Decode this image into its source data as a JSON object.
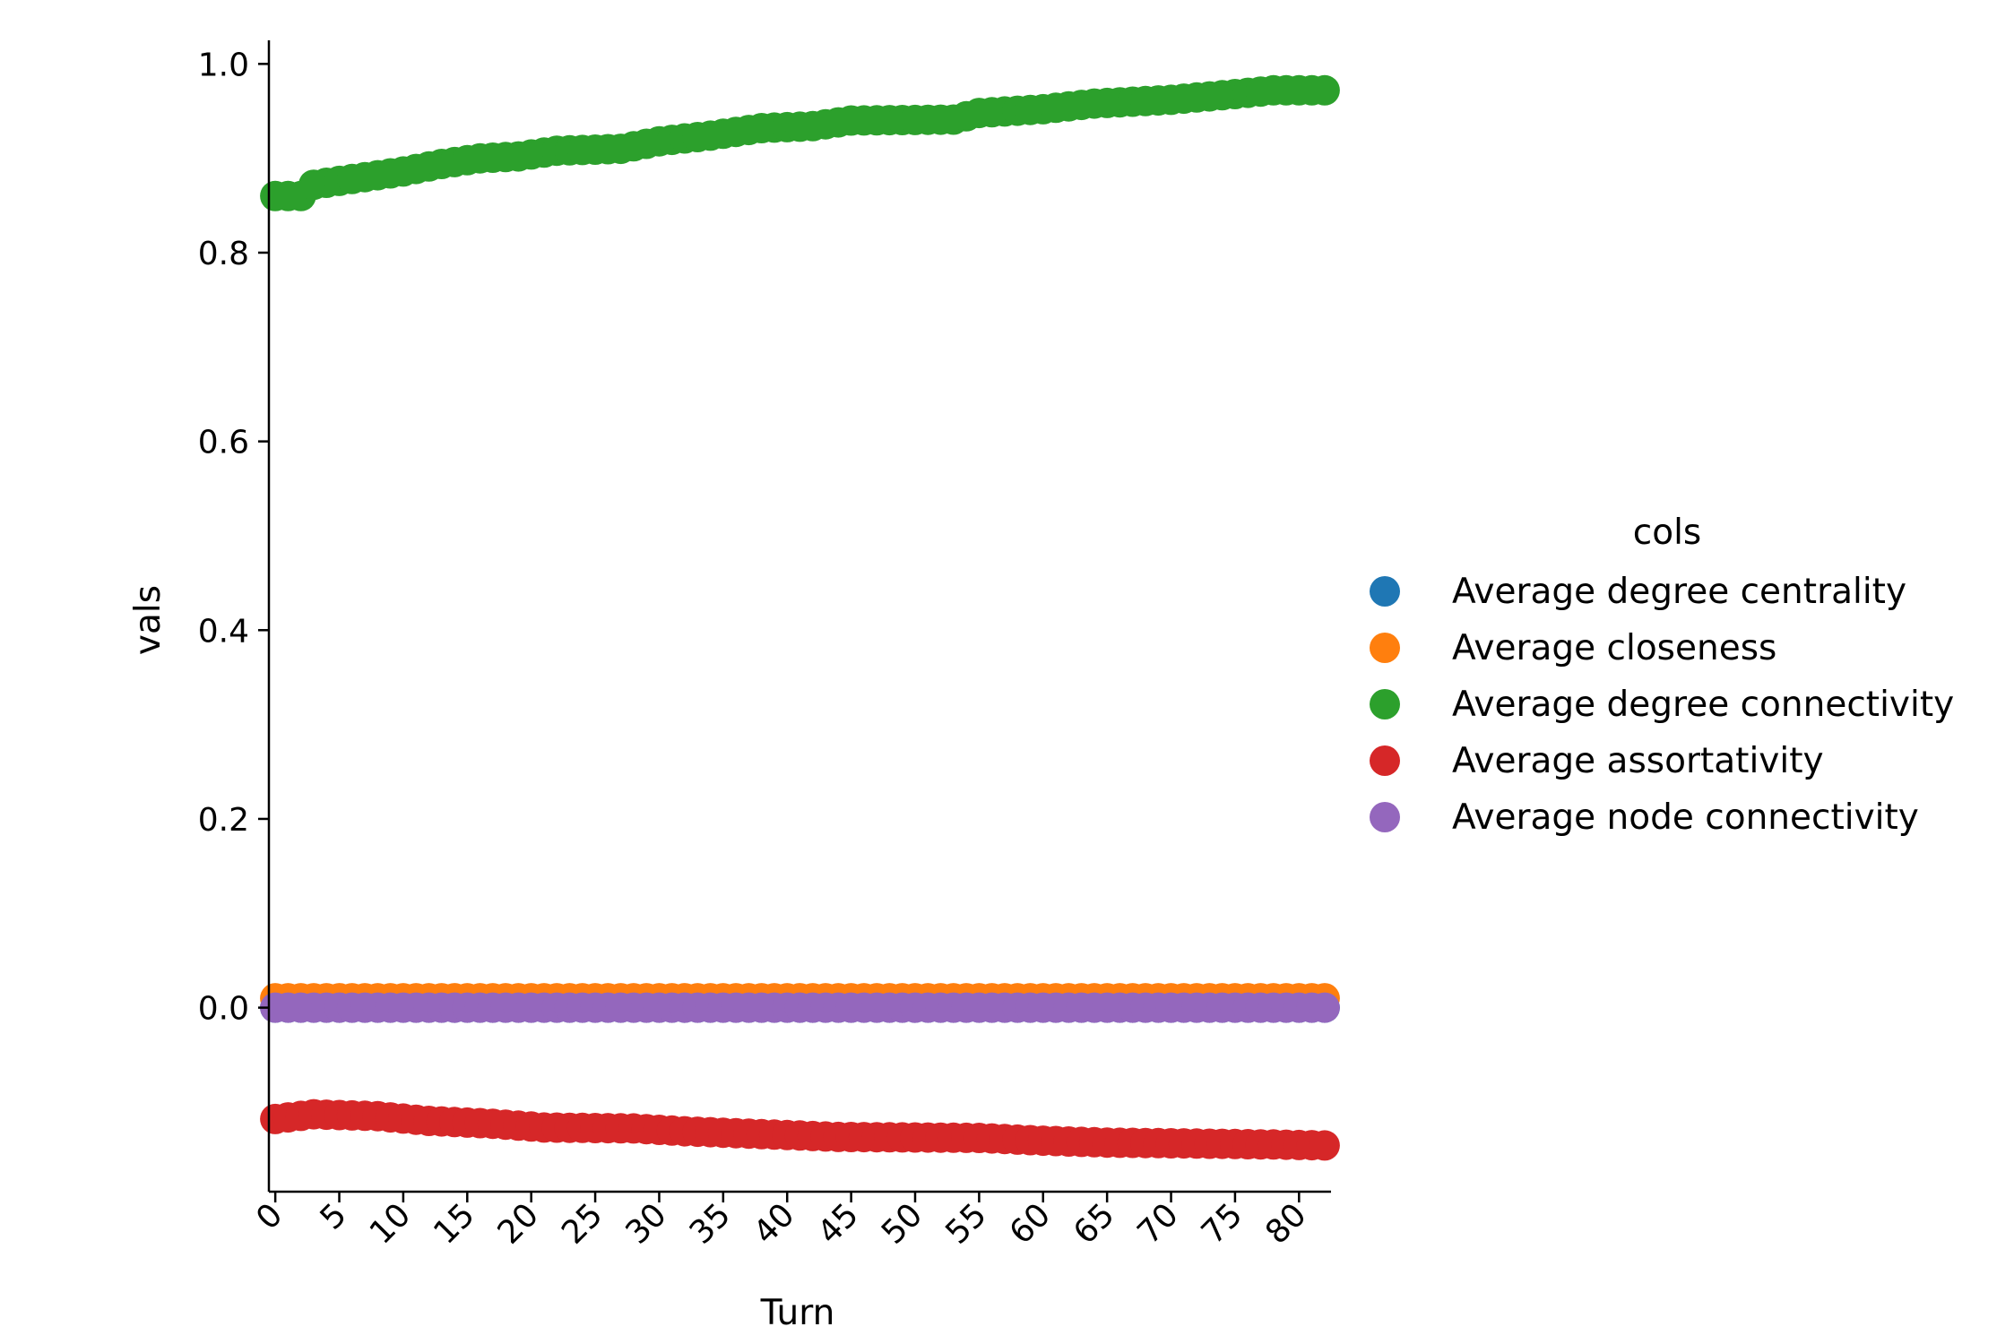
{
  "chart_data": {
    "type": "scatter",
    "title": "",
    "xlabel": "Turn",
    "ylabel": "vals",
    "x_ticks": [
      "0",
      "5",
      "10",
      "15",
      "20",
      "25",
      "30",
      "35",
      "40",
      "45",
      "50",
      "55",
      "60",
      "65",
      "70",
      "75",
      "80"
    ],
    "x_tick_values": [
      0,
      5,
      10,
      15,
      20,
      25,
      30,
      35,
      40,
      45,
      50,
      55,
      60,
      65,
      70,
      75,
      80
    ],
    "y_ticks": [
      "0.0",
      "0.2",
      "0.4",
      "0.6",
      "0.8",
      "1.0"
    ],
    "y_tick_values": [
      0.0,
      0.2,
      0.4,
      0.6,
      0.8,
      1.0
    ],
    "xlim": [
      -0.5,
      82.5
    ],
    "ylim": [
      -0.195,
      1.025
    ],
    "x": {
      "start": 0,
      "end": 82,
      "step": 1
    },
    "grid": false,
    "legend": {
      "title": "cols",
      "placement": "right"
    },
    "series": [
      {
        "name": "Average degree centrality",
        "color": "#1f77b4",
        "anchors": [
          [
            0,
            0.0
          ],
          [
            82,
            0.0
          ]
        ]
      },
      {
        "name": "Average closeness",
        "color": "#ff7f0e",
        "anchors": [
          [
            0,
            0.01
          ],
          [
            82,
            0.01
          ]
        ]
      },
      {
        "name": "Average degree connectivity",
        "color": "#2ca02c",
        "anchors": [
          [
            0,
            0.86
          ],
          [
            2,
            0.86
          ],
          [
            3,
            0.872
          ],
          [
            5,
            0.876
          ],
          [
            8,
            0.882
          ],
          [
            10,
            0.886
          ],
          [
            13,
            0.894
          ],
          [
            16,
            0.9
          ],
          [
            19,
            0.902
          ],
          [
            22,
            0.908
          ],
          [
            27,
            0.91
          ],
          [
            30,
            0.918
          ],
          [
            34,
            0.924
          ],
          [
            38,
            0.932
          ],
          [
            42,
            0.934
          ],
          [
            45,
            0.94
          ],
          [
            53,
            0.941
          ],
          [
            55,
            0.948
          ],
          [
            60,
            0.952
          ],
          [
            64,
            0.958
          ],
          [
            70,
            0.962
          ],
          [
            75,
            0.968
          ],
          [
            78,
            0.972
          ],
          [
            82,
            0.972
          ]
        ]
      },
      {
        "name": "Average assortativity",
        "color": "#d62728",
        "anchors": [
          [
            0,
            -0.118
          ],
          [
            3,
            -0.113
          ],
          [
            8,
            -0.115
          ],
          [
            12,
            -0.12
          ],
          [
            17,
            -0.123
          ],
          [
            21,
            -0.127
          ],
          [
            28,
            -0.128
          ],
          [
            32,
            -0.131
          ],
          [
            38,
            -0.134
          ],
          [
            44,
            -0.137
          ],
          [
            55,
            -0.138
          ],
          [
            60,
            -0.141
          ],
          [
            65,
            -0.143
          ],
          [
            72,
            -0.144
          ],
          [
            78,
            -0.145
          ],
          [
            82,
            -0.146
          ]
        ]
      },
      {
        "name": "Average node connectivity",
        "color": "#9467bd",
        "anchors": [
          [
            0,
            0.0
          ],
          [
            82,
            0.0
          ]
        ]
      }
    ]
  }
}
